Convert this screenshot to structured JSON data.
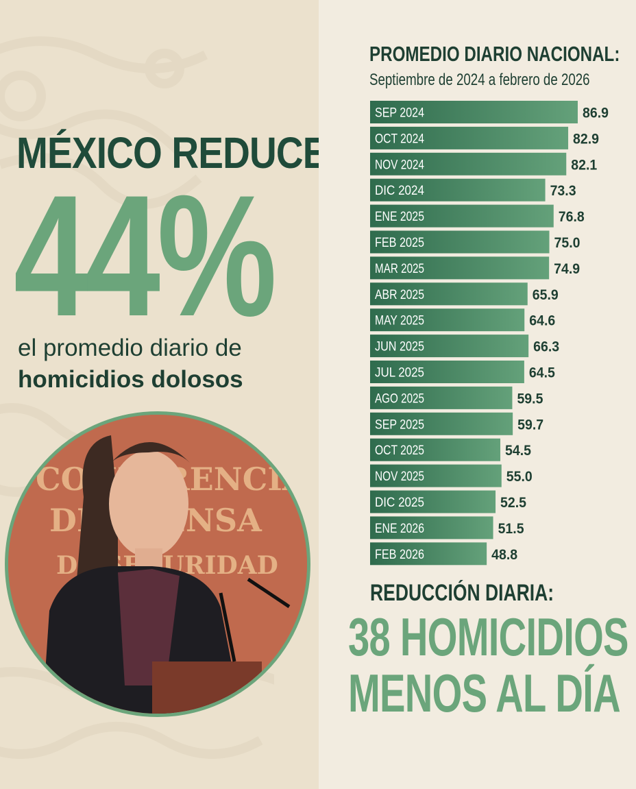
{
  "headline": "MÉXICO REDUCE",
  "percent": "44%",
  "subtitle_line1": "el promedio diario de",
  "subtitle_line2": "homicidios dolosos",
  "photo_backdrop_text": [
    "CONFERENCIA",
    "DE PRENSA",
    "DE SEGURIDAD"
  ],
  "reduction": {
    "label": "REDUCCIÓN DIARIA:",
    "line1": "38 HOMICIDIOS",
    "line2": "MENOS AL DÍA"
  },
  "colors": {
    "dark_green": "#1e3f32",
    "light_green": "#6ba57b",
    "bar_dark": "#2f6b4d",
    "bar_light": "#64a17a",
    "cream": "#efe7d8",
    "photo_bg": "#c06a4e"
  },
  "chart_data": {
    "type": "bar",
    "orientation": "horizontal",
    "title": "PROMEDIO DIARIO NACIONAL:",
    "subtitle": "Septiembre de 2024 a febrero de 2026",
    "categories": [
      "SEP 2024",
      "OCT 2024",
      "NOV 2024",
      "DIC 2024",
      "ENE 2025",
      "FEB 2025",
      "MAR 2025",
      "ABR 2025",
      "MAY 2025",
      "JUN 2025",
      "JUL 2025",
      "AGO 2025",
      "SEP 2025",
      "OCT 2025",
      "NOV 2025",
      "DIC 2025",
      "ENE 2026",
      "FEB 2026"
    ],
    "values": [
      86.9,
      82.9,
      82.1,
      73.3,
      76.8,
      75.0,
      74.9,
      65.9,
      64.6,
      66.3,
      64.5,
      59.5,
      59.7,
      54.5,
      55.0,
      52.5,
      51.5,
      48.8
    ],
    "value_labels": [
      "86.9",
      "82.9",
      "82.1",
      "73.3",
      "76.8",
      "75.0",
      "74.9",
      "65.9",
      "64.6",
      "66.3",
      "64.5",
      "59.5",
      "59.7",
      "54.5",
      "55.0",
      "52.5",
      "51.5",
      "48.8"
    ],
    "grid": false,
    "legend": "none"
  }
}
